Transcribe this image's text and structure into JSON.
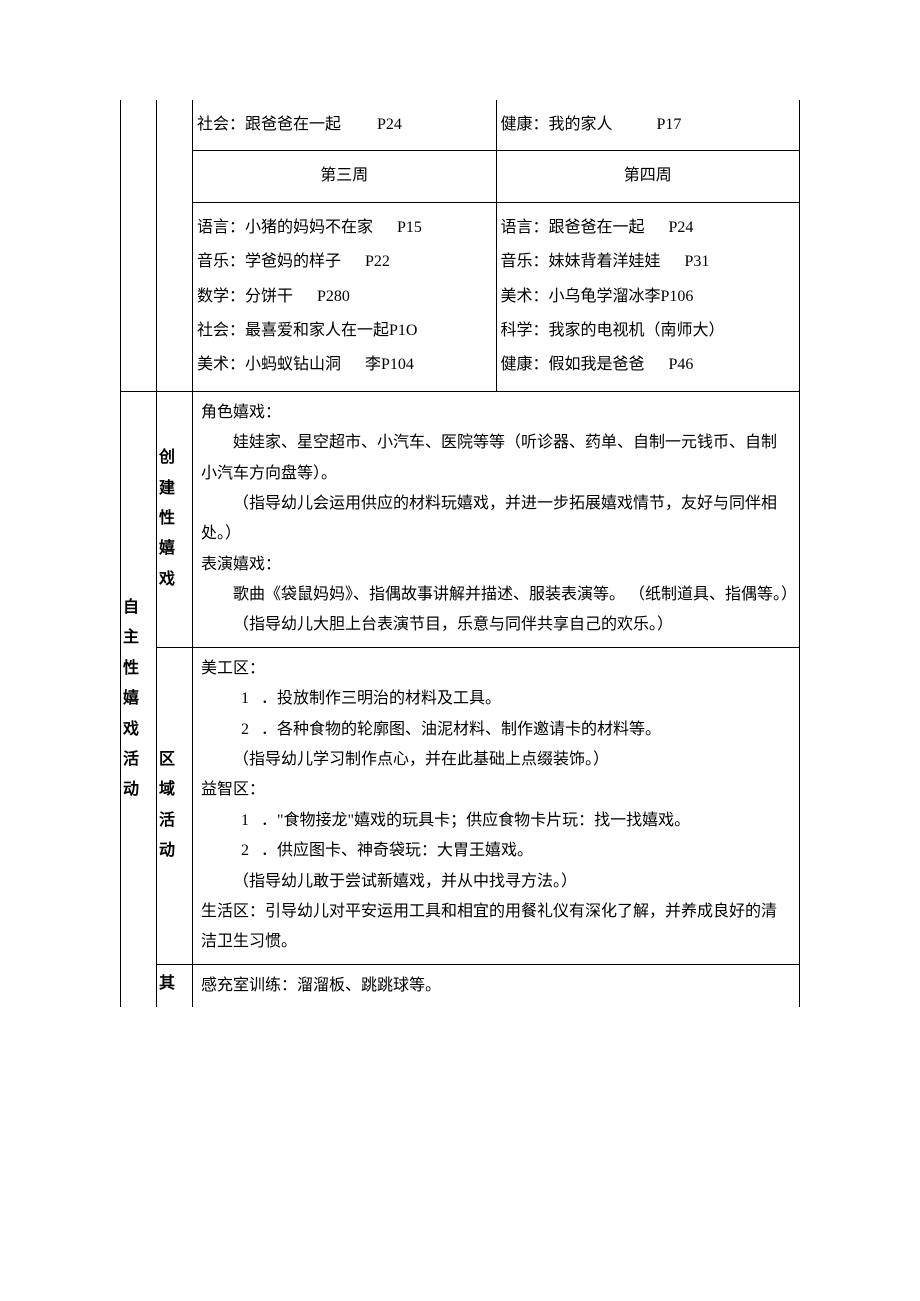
{
  "colors": {
    "text": "#000000",
    "background": "#ffffff",
    "border": "#000000"
  },
  "typography": {
    "font_family": "SimSun",
    "font_size_pt": 12,
    "line_height": 1.9,
    "header_weight": "bold"
  },
  "top_section": {
    "row1": {
      "left": {
        "text": "社会：跟爸爸在一起",
        "page": "P24"
      },
      "right": {
        "text": "健康：我的家人",
        "page": "P17"
      }
    },
    "row2": {
      "left_heading": "第三周",
      "right_heading": "第四周"
    },
    "row3": {
      "left_items": [
        {
          "text": "语言：小猪的妈妈不在家",
          "page": "P15"
        },
        {
          "text": "音乐：学爸妈的样子",
          "page": "P22"
        },
        {
          "text": "数学：分饼干",
          "page": "P280"
        },
        {
          "text": "社会：最喜爱和家人在一起P1O",
          "page": ""
        },
        {
          "text": "美术：小蚂蚁钻山洞",
          "page": "李P104"
        }
      ],
      "right_items": [
        {
          "text": "语言：跟爸爸在一起",
          "page": "P24"
        },
        {
          "text": "音乐：妹妹背着洋娃娃",
          "page": "P31"
        },
        {
          "text": "美术：小乌龟学溜冰李P106",
          "page": ""
        },
        {
          "text": "科学：我家的电视机（南师大）",
          "page": ""
        },
        {
          "text": "健康：假如我是爸爸",
          "page": "P46"
        }
      ]
    }
  },
  "main_section": {
    "col_a_label": "自主性嬉戏活动",
    "groups": [
      {
        "col_b_label": "创建性嬉戏",
        "lines": [
          {
            "type": "plain",
            "text": "角色嬉戏："
          },
          {
            "type": "indent",
            "text": "娃娃家、星空超市、小汽车、医院等等（听诊器、药单、自制一元钱币、自制小汽车方向盘等）。"
          },
          {
            "type": "indent",
            "text": "（指导幼儿会运用供应的材料玩嬉戏，并进一步拓展嬉戏情节，友好与同伴相处。）"
          },
          {
            "type": "plain",
            "text": "表演嬉戏："
          },
          {
            "type": "indent",
            "text": "歌曲《袋鼠妈妈》、指偶故事讲解并描述、服装表演等。 （纸制道具、指偶等。）"
          },
          {
            "type": "indent",
            "text": "（指导幼儿大胆上台表演节目，乐意与同伴共享自己的欢乐。）"
          }
        ]
      },
      {
        "col_b_label": "区域活动",
        "lines": [
          {
            "type": "plain",
            "text": "美工区："
          },
          {
            "type": "num",
            "num": "1",
            "text": "．投放制作三明治的材料及工具。"
          },
          {
            "type": "num",
            "num": "2",
            "text": "．各种食物的轮廓图、油泥材料、制作邀请卡的材料等。"
          },
          {
            "type": "indent",
            "text": "（指导幼儿学习制作点心，并在此基础上点缀装饰。）"
          },
          {
            "type": "plain",
            "text": "益智区："
          },
          {
            "type": "num",
            "num": "1",
            "text": "．\"食物接龙\"嬉戏的玩具卡；供应食物卡片玩：找一找嬉戏。"
          },
          {
            "type": "num",
            "num": "2",
            "text": "．供应图卡、神奇袋玩：大胃王嬉戏。"
          },
          {
            "type": "indent",
            "text": " （指导幼儿敢于尝试新嬉戏，并从中找寻方法。）"
          },
          {
            "type": "plain",
            "text": "生活区：引导幼儿对平安运用工具和相宜的用餐礼仪有深化了解，并养成良好的清洁卫生习惯。"
          }
        ]
      },
      {
        "col_b_label": "其",
        "lines": [
          {
            "type": "plain",
            "text": "感充室训练：溜溜板、跳跳球等。"
          }
        ],
        "open_bottom": true
      }
    ]
  }
}
